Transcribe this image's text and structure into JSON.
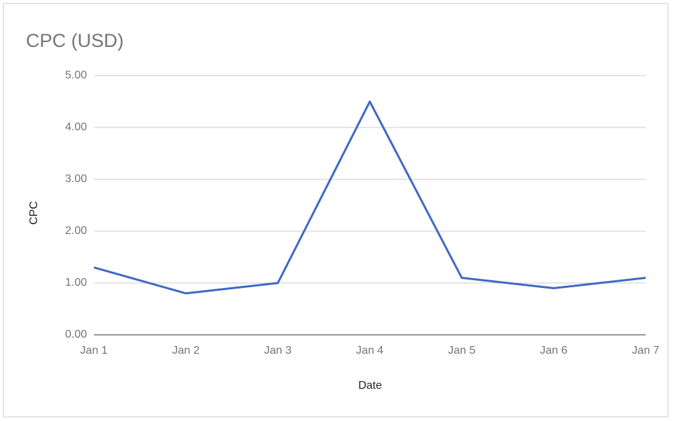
{
  "chart_data": {
    "type": "line",
    "title": "CPC (USD)",
    "x_label": "Date",
    "y_label": "CPC",
    "categories": [
      "Jan 1",
      "Jan 2",
      "Jan 3",
      "Jan 4",
      "Jan 5",
      "Jan 6",
      "Jan 7"
    ],
    "values": [
      1.3,
      0.8,
      1.0,
      4.5,
      1.1,
      0.9,
      1.1
    ],
    "color": "#4169c4",
    "ylim": [
      0,
      5
    ],
    "yticks": [
      {
        "value": 0,
        "label": "0.00"
      },
      {
        "value": 1,
        "label": "1.00"
      },
      {
        "value": 2,
        "label": "2.00"
      },
      {
        "value": 3,
        "label": "3.00"
      },
      {
        "value": 4,
        "label": "4.00"
      },
      {
        "value": 5,
        "label": "5.00"
      }
    ],
    "grid": true
  }
}
